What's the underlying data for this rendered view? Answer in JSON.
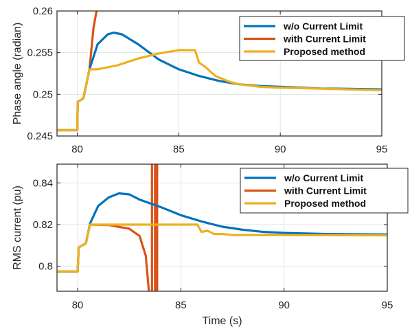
{
  "colors": {
    "wo_limit": "#0072BD",
    "with_limit": "#D95319",
    "proposed": "#EDB120"
  },
  "chart_data": [
    {
      "type": "line",
      "title": "",
      "xlabel": "",
      "ylabel": "Phase angle (radian)",
      "xlim": [
        79,
        95
      ],
      "ylim": [
        0.245,
        0.26
      ],
      "xticks": [
        80,
        85,
        90,
        95
      ],
      "xtick_labels": [
        "80",
        "85",
        "90",
        "95"
      ],
      "yticks": [
        0.245,
        0.25,
        0.255,
        0.26
      ],
      "ytick_labels": [
        "0.245",
        "0.25",
        "0.255",
        "0.26"
      ],
      "grid": true,
      "legend_position": "top-right",
      "series": [
        {
          "name": "w/o Current Limit",
          "color_key": "wo_limit",
          "x": [
            79,
            80,
            80.02,
            80.3,
            80.6,
            81,
            81.5,
            81.8,
            82.2,
            83,
            84,
            85,
            86,
            87,
            88,
            89,
            90,
            92,
            95
          ],
          "y": [
            0.2457,
            0.2457,
            0.2491,
            0.2495,
            0.253,
            0.256,
            0.2572,
            0.2574,
            0.2572,
            0.256,
            0.2542,
            0.253,
            0.2522,
            0.2516,
            0.2512,
            0.251,
            0.2509,
            0.2507,
            0.2506
          ]
        },
        {
          "name": "with Current Limit",
          "color_key": "with_limit",
          "x": [
            79,
            80,
            80.02,
            80.3,
            80.6,
            80.8,
            80.95
          ],
          "y": [
            0.2457,
            0.2457,
            0.2491,
            0.2495,
            0.253,
            0.258,
            0.26
          ]
        },
        {
          "name": "Proposed method",
          "color_key": "proposed",
          "x": [
            79,
            80,
            80.02,
            80.3,
            80.6,
            81,
            82,
            83,
            84,
            85,
            85.8,
            86,
            86.3,
            86.8,
            87.5,
            88,
            89,
            90,
            95
          ],
          "y": [
            0.2457,
            0.2457,
            0.2491,
            0.2495,
            0.253,
            0.253,
            0.2535,
            0.2543,
            0.2549,
            0.2553,
            0.2553,
            0.2538,
            0.2533,
            0.2522,
            0.2515,
            0.2512,
            0.2509,
            0.2508,
            0.2505
          ]
        }
      ]
    },
    {
      "type": "line",
      "title": "",
      "xlabel": "Time (s)",
      "ylabel": "RMS current (pu)",
      "xlim": [
        79,
        95
      ],
      "ylim": [
        0.788,
        0.849
      ],
      "xticks": [
        80,
        85,
        90,
        95
      ],
      "xtick_labels": [
        "80",
        "85",
        "90",
        "95"
      ],
      "yticks": [
        0.8,
        0.82,
        0.84
      ],
      "ytick_labels": [
        "0.8",
        "0.82",
        "0.84"
      ],
      "grid": true,
      "legend_position": "top-right",
      "series": [
        {
          "name": "w/o Current Limit",
          "color_key": "wo_limit",
          "x": [
            79,
            80,
            80.05,
            80.4,
            80.6,
            81,
            81.5,
            82,
            82.5,
            83,
            84,
            85,
            86,
            87,
            88,
            89,
            90,
            92,
            95
          ],
          "y": [
            0.7975,
            0.7975,
            0.809,
            0.811,
            0.8205,
            0.829,
            0.833,
            0.835,
            0.8345,
            0.832,
            0.8285,
            0.8245,
            0.8215,
            0.819,
            0.8175,
            0.8165,
            0.816,
            0.8155,
            0.8152
          ]
        },
        {
          "name": "with Current Limit",
          "color_key": "with_limit",
          "x": [
            79,
            80,
            80.05,
            80.4,
            80.6,
            81.5,
            82.5,
            83,
            83.3,
            83.45,
            null,
            83.6,
            83.6,
            null,
            83.75,
            83.75,
            null,
            83.85,
            83.85
          ],
          "y": [
            0.7975,
            0.7975,
            0.809,
            0.811,
            0.82,
            0.8198,
            0.818,
            0.8145,
            0.805,
            0.788,
            null,
            0.788,
            0.849,
            null,
            0.788,
            0.849,
            null,
            0.788,
            0.849
          ]
        },
        {
          "name": "Proposed method",
          "color_key": "proposed",
          "x": [
            79,
            80,
            80.05,
            80.4,
            80.6,
            85.8,
            86,
            86.3,
            86.6,
            87,
            87.5,
            95
          ],
          "y": [
            0.7975,
            0.7975,
            0.809,
            0.811,
            0.82,
            0.82,
            0.8165,
            0.817,
            0.8155,
            0.8155,
            0.815,
            0.8148
          ]
        }
      ]
    }
  ]
}
